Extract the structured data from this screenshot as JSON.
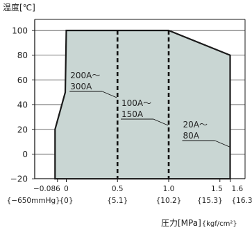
{
  "colors": {
    "region_fill": "#c9d6d3",
    "region_stroke": "#1a1a1a",
    "axis": "#1a1a1a",
    "grid": "#1a1a1a",
    "text": "#222222"
  },
  "chart_data": {
    "type": "area",
    "ylabel": "温度[℃]",
    "xlabel": "圧力[MPa]",
    "xlabel_unit": "{kgf/cm²}",
    "xlim": [
      -0.13,
      1.67
    ],
    "ylim": [
      -25,
      107
    ],
    "yticks": [
      {
        "value": 100,
        "label": "100"
      },
      {
        "value": 80,
        "label": "80"
      },
      {
        "value": 60,
        "label": "60"
      },
      {
        "value": 40,
        "label": "40"
      },
      {
        "value": 20,
        "label": "20"
      },
      {
        "value": 0,
        "label": "0"
      },
      {
        "value": -20,
        "label": "−20"
      }
    ],
    "xticks": [
      {
        "value": -0.086,
        "label": "−0.086",
        "sublabel": "{−650mmHg}"
      },
      {
        "value": 0,
        "label": "0",
        "sublabel": "{0}"
      },
      {
        "value": 0.5,
        "label": "0.5",
        "sublabel": "{5.1}"
      },
      {
        "value": 1.0,
        "label": "1.0",
        "sublabel": "{10.2}"
      },
      {
        "value": 1.5,
        "label": "1.5",
        "sublabel": "{15.3}"
      },
      {
        "value": 1.6,
        "label": "1.6",
        "sublabel": "{16.3}"
      }
    ],
    "region": {
      "points": [
        {
          "x": -0.11,
          "y": -20
        },
        {
          "x": -0.11,
          "y": 20
        },
        {
          "x": -0.01,
          "y": 50
        },
        {
          "x": 0,
          "y": 100
        },
        {
          "x": 1.0,
          "y": 100
        },
        {
          "x": 1.6,
          "y": 80
        },
        {
          "x": 1.6,
          "y": -20
        }
      ]
    },
    "size_limits": [
      {
        "x": 0.5,
        "label_lines": [
          "200A〜",
          "300A"
        ]
      },
      {
        "x": 1.0,
        "label_lines": [
          "100A〜",
          "150A"
        ]
      },
      {
        "x": 1.6,
        "label_lines": [
          "20A〜",
          "80A"
        ]
      }
    ],
    "grid": true
  }
}
